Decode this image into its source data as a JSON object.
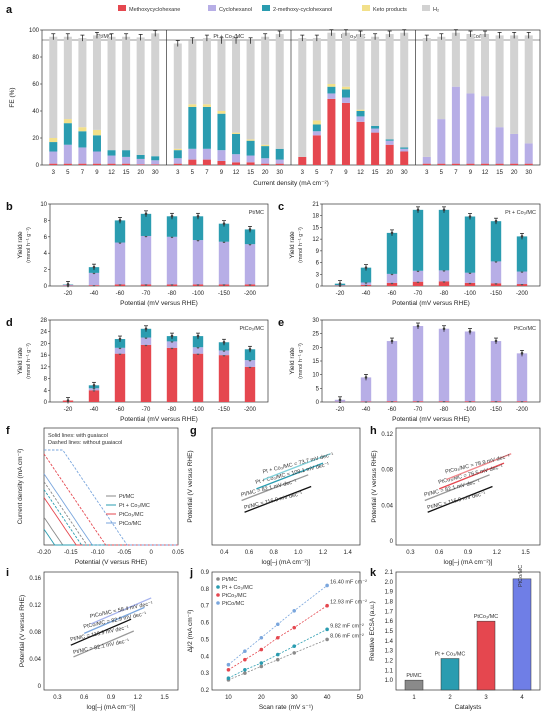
{
  "colors": {
    "methoxy": "#e5474f",
    "cyclohexanol": "#b7aee6",
    "twomethoxy": "#2a9cb0",
    "keto": "#f2e08a",
    "h2": "#d2d2d2",
    "pt": "#8a8a8a",
    "ptco": "#2a9cb0",
    "ptco2": "#e5474f",
    "ptco3": "#7aa6dd",
    "k1": "#8a8a8a",
    "k2": "#2a9cb0",
    "k3": "#e5474f",
    "k4": "#6f7ee6"
  },
  "panel_labels": {
    "a": "a",
    "b": "b",
    "c": "c",
    "d": "d",
    "e": "e",
    "f": "f",
    "g": "g",
    "h": "h",
    "i": "i",
    "j": "j",
    "k": "k"
  },
  "legend": {
    "items": [
      "Methoxycyclohexane",
      "Cyclohexanol",
      "2-methoxy-cyclohexanol",
      "Keto products",
      "H₂"
    ]
  },
  "chart_data": [
    {
      "id": "a",
      "type": "bar",
      "stacked": true,
      "ylabel": "FE (%)",
      "xlabel": "Current density (mA cm⁻²)",
      "ylim": [
        0,
        100
      ],
      "yticks": [
        0,
        20,
        40,
        60,
        80,
        100
      ],
      "categories": [
        "3",
        "5",
        "7",
        "9",
        "12",
        "15",
        "20",
        "30"
      ],
      "groups": [
        {
          "title": "Pt/MC",
          "title_color": "#222",
          "series": [
            {
              "name": "Methoxycyclohexane",
              "values": [
                1,
                1,
                1,
                1,
                1,
                1,
                0.5,
                0.5
              ]
            },
            {
              "name": "Cyclohexanol",
              "values": [
                9,
                14,
                12,
                9,
                6,
                5,
                4,
                3
              ]
            },
            {
              "name": "2-methoxy-cyclohexanol",
              "values": [
                7,
                16,
                12,
                12,
                4,
                5,
                3,
                3
              ]
            },
            {
              "name": "Keto products",
              "values": [
                3,
                3,
                3,
                4,
                0,
                0,
                0,
                0
              ]
            },
            {
              "name": "H₂",
              "values": [
                75,
                61,
                66,
                70,
                84,
                84,
                87,
                91
              ]
            }
          ]
        },
        {
          "title": "Pt + Co₃/MC",
          "title_color": "#222",
          "series": [
            {
              "name": "Methoxycyclohexane",
              "values": [
                1,
                4,
                4,
                3,
                2,
                2,
                1,
                1
              ]
            },
            {
              "name": "Cyclohexanol",
              "values": [
                4,
                8,
                8,
                8,
                6,
                5,
                4,
                3
              ]
            },
            {
              "name": "2-methoxy-cyclohexanol",
              "values": [
                6,
                31,
                31,
                27,
                15,
                11,
                9,
                8
              ]
            },
            {
              "name": "Keto products",
              "values": [
                1,
                2,
                2,
                2,
                1,
                1,
                1,
                0
              ]
            },
            {
              "name": "H₂",
              "values": [
                78,
                47,
                49,
                52,
                68,
                73,
                80,
                85
              ]
            }
          ]
        },
        {
          "title": "PtCo₃/MC",
          "title_color": "#e5474f",
          "series": [
            {
              "name": "Methoxycyclohexane",
              "values": [
                6,
                22,
                49,
                46,
                32,
                24,
                15,
                10
              ]
            },
            {
              "name": "Cyclohexanol",
              "values": [
                0,
                3,
                4,
                4,
                4,
                3,
                3,
                2
              ]
            },
            {
              "name": "2-methoxy-cyclohexanol",
              "values": [
                0,
                5,
                5,
                6,
                4,
                2,
                1,
                1
              ]
            },
            {
              "name": "Keto products",
              "values": [
                0,
                3,
                2,
                2,
                1,
                0,
                0,
                0
              ]
            },
            {
              "name": "H₂",
              "values": [
                88,
                61,
                38,
                40,
                56,
                66,
                78,
                85
              ]
            }
          ]
        },
        {
          "title": "PtCo/MC",
          "title_color": "#222",
          "series": [
            {
              "name": "Methoxycyclohexane",
              "values": [
                1,
                1,
                1,
                1,
                1,
                1,
                1,
                1
              ]
            },
            {
              "name": "Cyclohexanol",
              "values": [
                5,
                33,
                57,
                52,
                50,
                27,
                22,
                15
              ]
            },
            {
              "name": "2-methoxy-cyclohexanol",
              "values": [
                0,
                0,
                0,
                0,
                0,
                0,
                0,
                0
              ]
            },
            {
              "name": "Keto products",
              "values": [
                0,
                0,
                0,
                0,
                0,
                0,
                0,
                0
              ]
            },
            {
              "name": "H₂",
              "values": [
                88,
                61,
                40,
                44,
                46,
                68,
                73,
                80
              ]
            }
          ]
        }
      ]
    },
    {
      "id": "b",
      "type": "bar",
      "stacked": true,
      "title": "Pt/MC",
      "title_color": "#222",
      "ylabel": "Yield rate",
      "ylabel2": "(mmol h⁻¹ g⁻¹)",
      "xlabel": "Potential (mV versus RHE)",
      "categories": [
        "-20",
        "-40",
        "-60",
        "-70",
        "-80",
        "-100",
        "-150",
        "-200"
      ],
      "ylim": [
        0,
        10
      ],
      "yticks": [
        0,
        2,
        4,
        6,
        8,
        10
      ],
      "series": [
        {
          "name": "Methoxycyclohexane",
          "values": [
            0.05,
            0.1,
            0.2,
            0.2,
            0.2,
            0.2,
            0.2,
            0.2
          ]
        },
        {
          "name": "Cyclohexanol",
          "values": [
            0.1,
            1.5,
            5.1,
            5.9,
            5.8,
            5.4,
            5.2,
            4.9
          ]
        },
        {
          "name": "2-methoxy-cyclohexanol",
          "values": [
            0.05,
            0.7,
            2.7,
            2.7,
            2.5,
            2.9,
            2.2,
            1.8
          ]
        }
      ]
    },
    {
      "id": "c",
      "type": "bar",
      "stacked": true,
      "title": "Pt + Co₃/MC",
      "title_color": "#222",
      "ylabel": "Yield rate",
      "ylabel2": "(mmol h⁻¹ g⁻¹)",
      "xlabel": "Potential (mV versus RHE)",
      "categories": [
        "-20",
        "-40",
        "-60",
        "-70",
        "-80",
        "-100",
        "-150",
        "-200"
      ],
      "ylim": [
        0,
        21
      ],
      "yticks": [
        0,
        3,
        6,
        9,
        12,
        15,
        18,
        21
      ],
      "series": [
        {
          "name": "Methoxycyclohexane",
          "values": [
            0.1,
            0.3,
            0.8,
            1.1,
            1.2,
            0.8,
            0.7,
            0.5
          ]
        },
        {
          "name": "Cyclohexanol",
          "values": [
            0.1,
            0.6,
            2.3,
            2.8,
            2.8,
            2.6,
            5.6,
            3.2
          ]
        },
        {
          "name": "2-methoxy-cyclohexanol",
          "values": [
            0.4,
            3.8,
            10.5,
            15.6,
            15.5,
            14.4,
            10.3,
            9
          ]
        }
      ]
    },
    {
      "id": "d",
      "type": "bar",
      "stacked": true,
      "title": "PtCo₃/MC",
      "title_color": "#e5474f",
      "ylabel": "Yield rate",
      "ylabel2": "(mmol h⁻¹ g⁻¹)",
      "xlabel": "Potential (mV versus RHE)",
      "categories": [
        "-20",
        "-40",
        "-60",
        "-70",
        "-80",
        "-100",
        "-150",
        "-200"
      ],
      "ylim": [
        0,
        28
      ],
      "yticks": [
        0,
        4,
        8,
        12,
        16,
        20,
        24,
        28
      ],
      "series": [
        {
          "name": "Methoxycyclohexane",
          "values": [
            0.5,
            4,
            16.5,
            19.5,
            18.5,
            16.5,
            16,
            12
          ]
        },
        {
          "name": "Cyclohexanol",
          "values": [
            0,
            0.7,
            2,
            2.5,
            2.2,
            2.2,
            1.6,
            2.3
          ]
        },
        {
          "name": "2-methoxy-cyclohexanol",
          "values": [
            0,
            1,
            3,
            3,
            1.8,
            3.8,
            2.8,
            3.7
          ]
        }
      ]
    },
    {
      "id": "e",
      "type": "bar",
      "stacked": true,
      "title": "PtCo/MC",
      "title_color": "#222",
      "ylabel": "Yield rate",
      "ylabel2": "(mmol h⁻¹ g⁻¹)",
      "xlabel": "Potential (mV versus RHE)",
      "categories": [
        "-20",
        "-40",
        "-60",
        "-70",
        "-80",
        "-100",
        "-150",
        "-200"
      ],
      "ylim": [
        0,
        30
      ],
      "yticks": [
        0,
        5,
        10,
        15,
        20,
        25,
        30
      ],
      "series": [
        {
          "name": "Methoxycyclohexane",
          "values": [
            0.1,
            0.2,
            0.3,
            0.3,
            0.3,
            0.3,
            0.3,
            0.3
          ]
        },
        {
          "name": "Cyclohexanol",
          "values": [
            0.7,
            8.8,
            22,
            27.5,
            26.5,
            25.5,
            22,
            17.5
          ]
        }
      ]
    },
    {
      "id": "f",
      "type": "line",
      "xlabel": "Potential (V versus RHE)",
      "ylabel": "Current density (mA cm⁻²)",
      "xlim": [
        -0.2,
        0.05
      ],
      "xticks": [
        "-0.20",
        "-0.15",
        "-0.10",
        "-0.05",
        "0",
        "0.05"
      ],
      "note1": "Solid lines: with guaiacol",
      "note2": "Dashed lines: without guaiacol",
      "legend": [
        "Pt/MC",
        "Pt + Co₃/MC",
        "PtCo₃/MC",
        "PtCo/MC"
      ],
      "onset": [
        -0.165,
        -0.18,
        -0.14,
        -0.11
      ],
      "onset_dashed": [
        -0.12,
        -0.13,
        -0.085,
        -0.045
      ]
    },
    {
      "id": "g",
      "type": "line",
      "xlabel": "log[–j (mA cm⁻²)]",
      "ylabel": "Potential (V versus RHE)",
      "xlim": [
        0.3,
        1.5
      ],
      "xticks": [
        "0.4",
        "0.6",
        "0.8",
        "1.0",
        "1.2",
        "1.4"
      ],
      "annotations": [
        "Pt/MC = 116.9 mV dec⁻¹",
        "Pt/MC = 82.1 mV dec⁻¹",
        "Pt + Co₃/MC = 109.1 mV dec⁻¹",
        "Pt + Co₃/MC = 73.7 mV dec⁻¹"
      ]
    },
    {
      "id": "h",
      "type": "line",
      "xlabel": "log[–j (mA cm⁻²)]",
      "ylabel": "Potential (V versus RHE)",
      "ylim": [
        0,
        0.12
      ],
      "yticks": [
        "0",
        "0.04",
        "0.08",
        "0.12"
      ],
      "xticks": [
        "0.3",
        "0.6",
        "0.9",
        "1.2",
        "1.5"
      ],
      "annotations": [
        "Pt/MC = 116.9 mV dec⁻¹",
        "Pt/MC = 82.1 mV dec⁻¹",
        "PtCo₃/MC = 76.5 mV dec⁻¹",
        "PtCo₃/MC = 78.9 mV dec⁻¹"
      ]
    },
    {
      "id": "i",
      "type": "line",
      "xlabel": "log[–j (mA cm⁻²)]",
      "ylabel": "Potential (V versus RHE)",
      "ylim": [
        0,
        0.16
      ],
      "yticks": [
        "0",
        "0.04",
        "0.08",
        "0.12",
        "0.16"
      ],
      "xticks": [
        "0.3",
        "0.6",
        "0.9",
        "1.2",
        "1.5"
      ],
      "annotations": [
        "Pt/MC = 82.1 mV dec⁻¹",
        "Pt/MC = 116.9 mV dec⁻¹",
        "PtCo/MC = 82.9 mV dec⁻¹",
        "PtCo/MC = 58.4 mV dec⁻¹"
      ]
    },
    {
      "id": "j",
      "type": "scatter",
      "xlabel": "Scan rate (mV s⁻¹)",
      "ylabel": "Δj/2 (mA cm⁻²)",
      "xlim": [
        5,
        50
      ],
      "ylim": [
        0.2,
        0.9
      ],
      "xticks": [
        10,
        20,
        30,
        40,
        50
      ],
      "yticks": [
        0.2,
        0.3,
        0.4,
        0.5,
        0.6,
        0.7,
        0.8,
        0.9
      ],
      "legend": [
        "Pt/MC",
        "Pt + Co₃/MC",
        "PtCo₃/MC",
        "PtCo/MC"
      ],
      "x": [
        10,
        15,
        20,
        25,
        30,
        40
      ],
      "series": [
        {
          "name": "Pt/MC",
          "values": [
            0.26,
            0.3,
            0.34,
            0.38,
            0.42,
            0.5
          ],
          "label": "8.06 mF cm⁻²"
        },
        {
          "name": "Pt + Co₃/MC",
          "values": [
            0.27,
            0.32,
            0.36,
            0.41,
            0.46,
            0.56
          ],
          "label": "9.82 mF cm⁻²"
        },
        {
          "name": "PtCo₃/MC",
          "values": [
            0.32,
            0.38,
            0.44,
            0.51,
            0.57,
            0.7
          ],
          "label": "12.93 mF cm⁻²"
        },
        {
          "name": "PtCo/MC",
          "values": [
            0.35,
            0.43,
            0.51,
            0.59,
            0.67,
            0.82
          ],
          "label": "16.40 mF cm⁻²"
        }
      ]
    },
    {
      "id": "k",
      "type": "bar",
      "xlabel": "Catalysts",
      "ylabel": "Relative ECSA (a.u.)",
      "ylim": [
        0.9,
        2.1
      ],
      "yticks": [
        1.0,
        1.1,
        1.2,
        1.3,
        1.4,
        1.5,
        1.6,
        1.7,
        1.8,
        1.9,
        2.0,
        2.1
      ],
      "categories": [
        "1",
        "2",
        "3",
        "4"
      ],
      "values": [
        1.0,
        1.22,
        1.6,
        2.03
      ],
      "labels": [
        "Pt/MC",
        "Pt + Co₃/MC",
        "PtCo₃/MC",
        "PtCo/MC"
      ]
    }
  ]
}
